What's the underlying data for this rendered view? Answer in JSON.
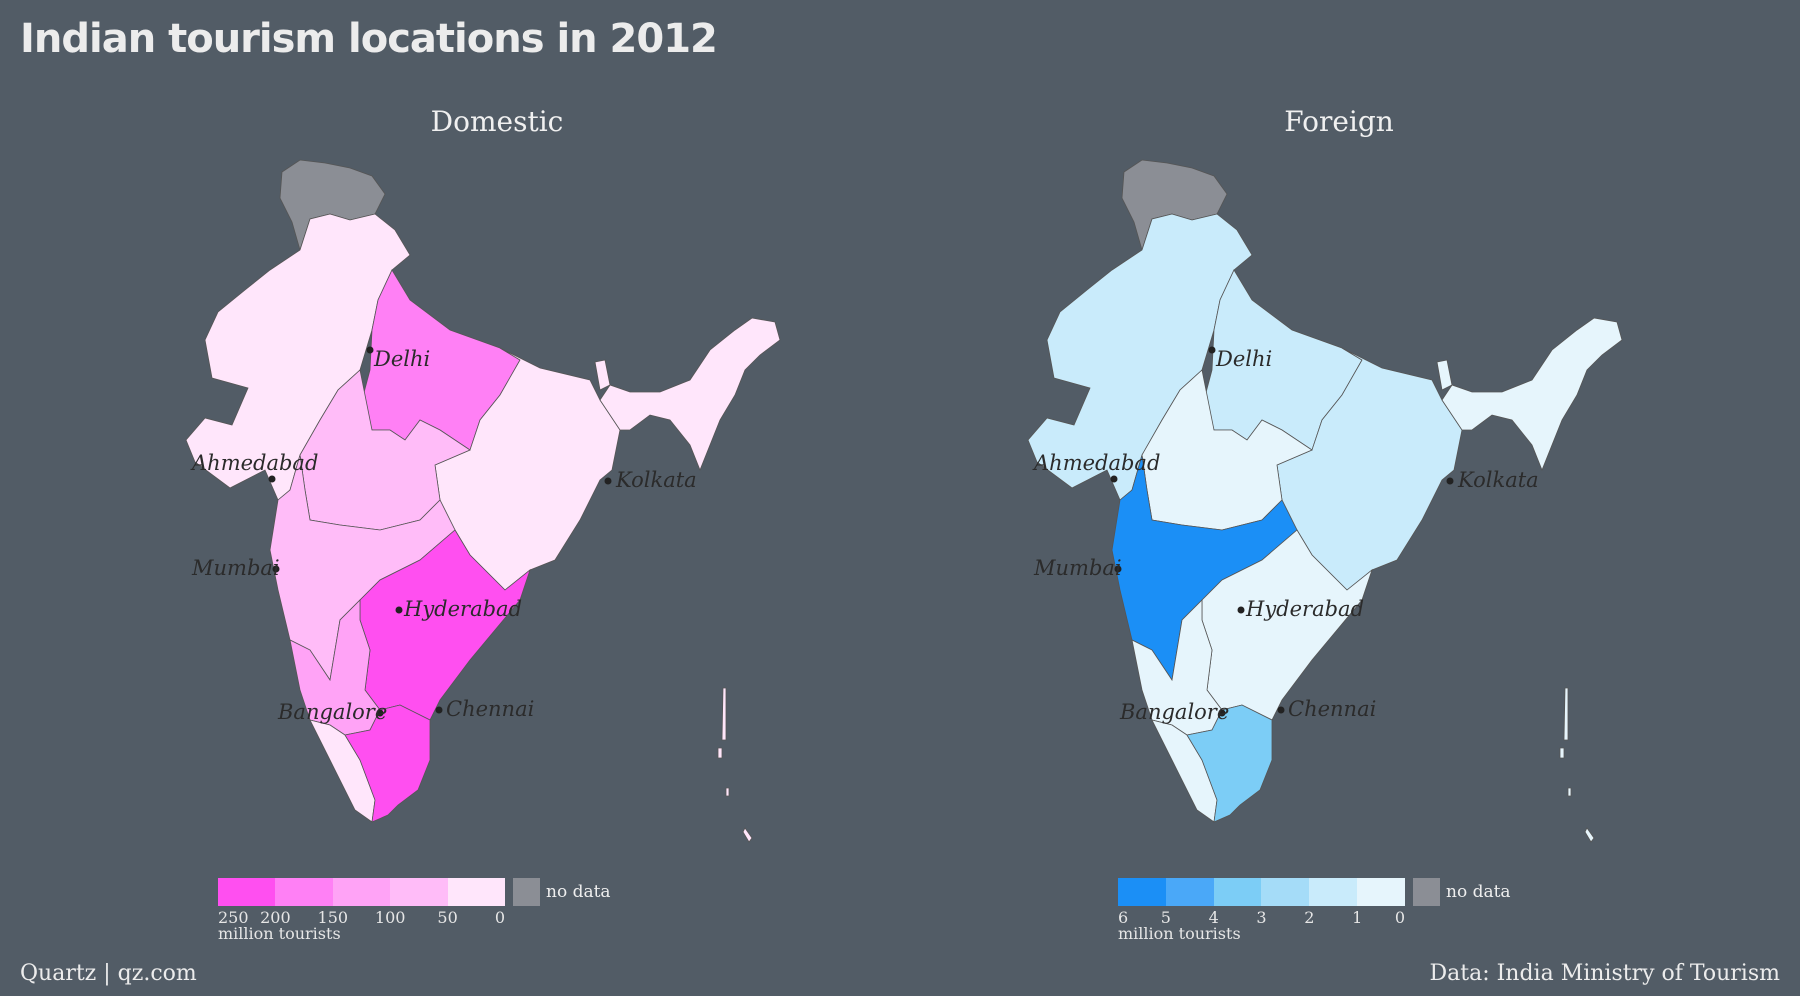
{
  "title": "Indian tourism locations in 2012",
  "panels": [
    {
      "title": "Domestic",
      "palette": {
        "rest": "#ffe6fb",
        "up": "#ff80f5",
        "mp": "#ffbcf8",
        "maha": "#ffbcf8",
        "kar": "#ffa3f6",
        "ap": "#ff4ff0",
        "tn": "#ff4ff0",
        "nodata": "#8b8e95"
      },
      "legend": {
        "colors": [
          "#ff4ff0",
          "#ff80f5",
          "#ffa3f6",
          "#ffbcf8",
          "#ffe6fb"
        ],
        "ticks": [
          "250",
          "200",
          "150",
          "100",
          "50",
          "0"
        ],
        "unit": "million tourists",
        "nodata": "no data"
      }
    },
    {
      "title": "Foreign",
      "palette": {
        "rest": "#e6f5fc",
        "up": "#c9ebfb",
        "mp": "#e6f5fc",
        "maha": "#1b8ff6",
        "kar": "#e6f5fc",
        "ap": "#e6f5fc",
        "tn": "#7ccdf6",
        "raj": "#c9ebfb",
        "wb": "#c9ebfb",
        "nodata": "#8b8e95"
      },
      "legend": {
        "colors": [
          "#1b8ff6",
          "#4aa8f8",
          "#7ccdf6",
          "#a5dcf8",
          "#c9ebfb",
          "#e6f5fc"
        ],
        "ticks": [
          "6",
          "5",
          "4",
          "3",
          "2",
          "1",
          "0"
        ],
        "unit": "million tourists",
        "nodata": "no data"
      }
    }
  ],
  "cities": [
    "Delhi",
    "Ahmedabad",
    "Kolkata",
    "Mumbai",
    "Hyderabad",
    "Bangalore",
    "Chennai"
  ],
  "footer": {
    "left": "Quartz | qz.com",
    "right": "Data: India Ministry of Tourism"
  }
}
